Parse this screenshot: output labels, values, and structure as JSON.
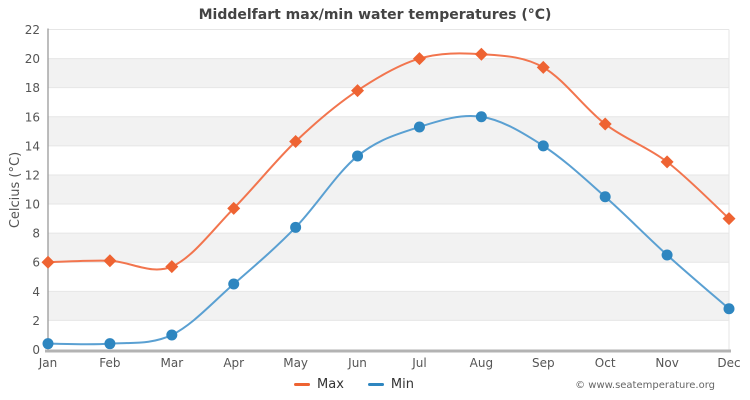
{
  "title": "Middelfart max/min water temperatures (°C)",
  "y_axis_title": "Celcius (°C)",
  "footer": "© www.seatemperature.org",
  "chart_data": {
    "type": "line",
    "title": "Middelfart max/min water temperatures (°C)",
    "xlabel": "",
    "ylabel": "Celcius (°C)",
    "categories": [
      "Jan",
      "Feb",
      "Mar",
      "Apr",
      "May",
      "Jun",
      "Jul",
      "Aug",
      "Sep",
      "Oct",
      "Nov",
      "Dec"
    ],
    "series": [
      {
        "name": "Max",
        "marker": "diamond",
        "color": "#ee6332",
        "line_color": "#f2754e",
        "values": [
          6.0,
          6.1,
          5.7,
          9.7,
          14.3,
          17.8,
          20.0,
          20.3,
          19.4,
          15.5,
          12.9,
          9.0
        ]
      },
      {
        "name": "Min",
        "marker": "circle",
        "color": "#2e86c0",
        "line_color": "#5aa0d2",
        "values": [
          0.4,
          0.4,
          1.0,
          4.5,
          8.4,
          13.3,
          15.3,
          16.0,
          14.0,
          10.5,
          6.5,
          2.8
        ]
      }
    ],
    "ylim": [
      0,
      22
    ],
    "ytick_step": 2,
    "yticks": [
      0,
      2,
      4,
      6,
      8,
      10,
      12,
      14,
      16,
      18,
      20,
      22
    ],
    "grid": "horizontal gridlines with alternating shaded bands",
    "band_color": "#f2f2f2",
    "gridline_color": "#e6e6e6",
    "axis_line_color": "#9a9a9a",
    "bottom_axis_color": "#b3b3b3",
    "tick_label_color": "#555555",
    "legend_position": "bottom-center",
    "smooth": true
  }
}
